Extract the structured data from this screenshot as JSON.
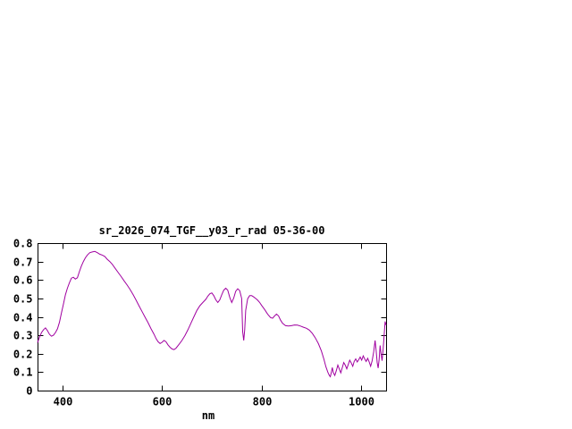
{
  "window": {
    "background": "#ffffff"
  },
  "chart_data": {
    "type": "line",
    "title": "sr_2026_074_TGF__y03_r_rad 05-36-00",
    "xlabel": "nm",
    "ylabel": "",
    "xlim": [
      350,
      1050
    ],
    "ylim": [
      0,
      0.8
    ],
    "xticks": [
      400,
      600,
      800,
      1000
    ],
    "yticks": [
      0,
      0.1,
      0.2,
      0.3,
      0.4,
      0.5,
      0.6,
      0.7,
      0.8
    ],
    "grid": false,
    "legend": "none",
    "line_color": "#a000a0",
    "axis_color": "#000000",
    "points": [
      [
        350,
        0.26
      ],
      [
        354,
        0.29
      ],
      [
        358,
        0.315
      ],
      [
        362,
        0.33
      ],
      [
        366,
        0.34
      ],
      [
        370,
        0.325
      ],
      [
        374,
        0.305
      ],
      [
        378,
        0.295
      ],
      [
        382,
        0.3
      ],
      [
        386,
        0.315
      ],
      [
        390,
        0.335
      ],
      [
        394,
        0.37
      ],
      [
        398,
        0.42
      ],
      [
        402,
        0.47
      ],
      [
        406,
        0.52
      ],
      [
        410,
        0.555
      ],
      [
        414,
        0.585
      ],
      [
        418,
        0.61
      ],
      [
        422,
        0.615
      ],
      [
        426,
        0.605
      ],
      [
        430,
        0.612
      ],
      [
        434,
        0.645
      ],
      [
        438,
        0.675
      ],
      [
        442,
        0.7
      ],
      [
        446,
        0.72
      ],
      [
        450,
        0.735
      ],
      [
        455,
        0.748
      ],
      [
        460,
        0.752
      ],
      [
        465,
        0.755
      ],
      [
        470,
        0.748
      ],
      [
        475,
        0.74
      ],
      [
        480,
        0.735
      ],
      [
        485,
        0.728
      ],
      [
        490,
        0.712
      ],
      [
        495,
        0.7
      ],
      [
        500,
        0.685
      ],
      [
        506,
        0.663
      ],
      [
        512,
        0.64
      ],
      [
        518,
        0.618
      ],
      [
        524,
        0.595
      ],
      [
        530,
        0.572
      ],
      [
        536,
        0.548
      ],
      [
        542,
        0.52
      ],
      [
        548,
        0.49
      ],
      [
        554,
        0.458
      ],
      [
        560,
        0.428
      ],
      [
        566,
        0.398
      ],
      [
        572,
        0.368
      ],
      [
        578,
        0.335
      ],
      [
        584,
        0.305
      ],
      [
        588,
        0.282
      ],
      [
        592,
        0.265
      ],
      [
        596,
        0.255
      ],
      [
        600,
        0.262
      ],
      [
        604,
        0.272
      ],
      [
        608,
        0.265
      ],
      [
        612,
        0.248
      ],
      [
        616,
        0.235
      ],
      [
        620,
        0.226
      ],
      [
        624,
        0.222
      ],
      [
        628,
        0.23
      ],
      [
        634,
        0.25
      ],
      [
        640,
        0.272
      ],
      [
        646,
        0.298
      ],
      [
        652,
        0.33
      ],
      [
        658,
        0.365
      ],
      [
        664,
        0.4
      ],
      [
        670,
        0.435
      ],
      [
        676,
        0.46
      ],
      [
        682,
        0.478
      ],
      [
        688,
        0.495
      ],
      [
        692,
        0.512
      ],
      [
        696,
        0.525
      ],
      [
        700,
        0.53
      ],
      [
        704,
        0.515
      ],
      [
        708,
        0.492
      ],
      [
        712,
        0.478
      ],
      [
        716,
        0.492
      ],
      [
        720,
        0.52
      ],
      [
        724,
        0.545
      ],
      [
        728,
        0.555
      ],
      [
        732,
        0.545
      ],
      [
        736,
        0.505
      ],
      [
        740,
        0.478
      ],
      [
        744,
        0.502
      ],
      [
        748,
        0.538
      ],
      [
        752,
        0.552
      ],
      [
        756,
        0.542
      ],
      [
        760,
        0.5
      ],
      [
        762,
        0.32
      ],
      [
        764,
        0.272
      ],
      [
        766,
        0.33
      ],
      [
        768,
        0.435
      ],
      [
        772,
        0.498
      ],
      [
        776,
        0.515
      ],
      [
        780,
        0.515
      ],
      [
        784,
        0.508
      ],
      [
        788,
        0.5
      ],
      [
        792,
        0.49
      ],
      [
        796,
        0.478
      ],
      [
        800,
        0.462
      ],
      [
        806,
        0.44
      ],
      [
        812,
        0.415
      ],
      [
        818,
        0.396
      ],
      [
        822,
        0.392
      ],
      [
        826,
        0.405
      ],
      [
        830,
        0.415
      ],
      [
        834,
        0.405
      ],
      [
        838,
        0.382
      ],
      [
        842,
        0.365
      ],
      [
        848,
        0.352
      ],
      [
        854,
        0.35
      ],
      [
        860,
        0.352
      ],
      [
        866,
        0.356
      ],
      [
        872,
        0.355
      ],
      [
        878,
        0.35
      ],
      [
        884,
        0.344
      ],
      [
        890,
        0.338
      ],
      [
        896,
        0.328
      ],
      [
        902,
        0.31
      ],
      [
        908,
        0.285
      ],
      [
        914,
        0.255
      ],
      [
        920,
        0.215
      ],
      [
        925,
        0.17
      ],
      [
        929,
        0.13
      ],
      [
        933,
        0.1
      ],
      [
        936,
        0.082
      ],
      [
        938,
        0.075
      ],
      [
        940,
        0.098
      ],
      [
        942,
        0.125
      ],
      [
        944,
        0.098
      ],
      [
        947,
        0.082
      ],
      [
        950,
        0.108
      ],
      [
        953,
        0.138
      ],
      [
        956,
        0.118
      ],
      [
        959,
        0.096
      ],
      [
        962,
        0.125
      ],
      [
        965,
        0.152
      ],
      [
        968,
        0.138
      ],
      [
        971,
        0.118
      ],
      [
        974,
        0.142
      ],
      [
        977,
        0.165
      ],
      [
        980,
        0.15
      ],
      [
        983,
        0.132
      ],
      [
        986,
        0.158
      ],
      [
        989,
        0.172
      ],
      [
        992,
        0.155
      ],
      [
        995,
        0.168
      ],
      [
        998,
        0.182
      ],
      [
        1001,
        0.165
      ],
      [
        1004,
        0.188
      ],
      [
        1007,
        0.172
      ],
      [
        1010,
        0.158
      ],
      [
        1013,
        0.175
      ],
      [
        1016,
        0.155
      ],
      [
        1019,
        0.132
      ],
      [
        1022,
        0.162
      ],
      [
        1025,
        0.21
      ],
      [
        1028,
        0.272
      ],
      [
        1030,
        0.215
      ],
      [
        1032,
        0.152
      ],
      [
        1034,
        0.122
      ],
      [
        1036,
        0.168
      ],
      [
        1038,
        0.245
      ],
      [
        1040,
        0.198
      ],
      [
        1042,
        0.162
      ],
      [
        1044,
        0.225
      ],
      [
        1046,
        0.3
      ],
      [
        1048,
        0.375
      ],
      [
        1050,
        0.355
      ]
    ]
  }
}
